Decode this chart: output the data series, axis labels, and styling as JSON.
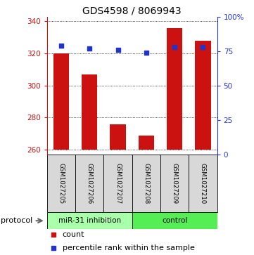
{
  "title": "GDS4598 / 8069943",
  "samples": [
    "GSM1027205",
    "GSM1027206",
    "GSM1027207",
    "GSM1027208",
    "GSM1027209",
    "GSM1027210"
  ],
  "counts": [
    320,
    307,
    276,
    269,
    336,
    328
  ],
  "percentile_ranks": [
    79,
    77,
    76,
    74,
    78,
    78
  ],
  "baseline": 260,
  "ylim_left": [
    257,
    343
  ],
  "ylim_right": [
    0,
    100
  ],
  "yticks_left": [
    260,
    280,
    300,
    320,
    340
  ],
  "yticks_right": [
    0,
    25,
    50,
    75,
    100
  ],
  "yticklabels_right": [
    "0",
    "25",
    "50",
    "75",
    "100%"
  ],
  "bar_color": "#cc1111",
  "dot_color": "#2233cc",
  "grid_color": "#000000",
  "group1_label": "miR-31 inhibition",
  "group2_label": "control",
  "group1_color": "#aaffaa",
  "group2_color": "#55ee55",
  "protocol_label": "protocol",
  "legend_count_label": "count",
  "legend_percentile_label": "percentile rank within the sample",
  "plot_bg": "#ffffff",
  "label_bg": "#d8d8d8"
}
